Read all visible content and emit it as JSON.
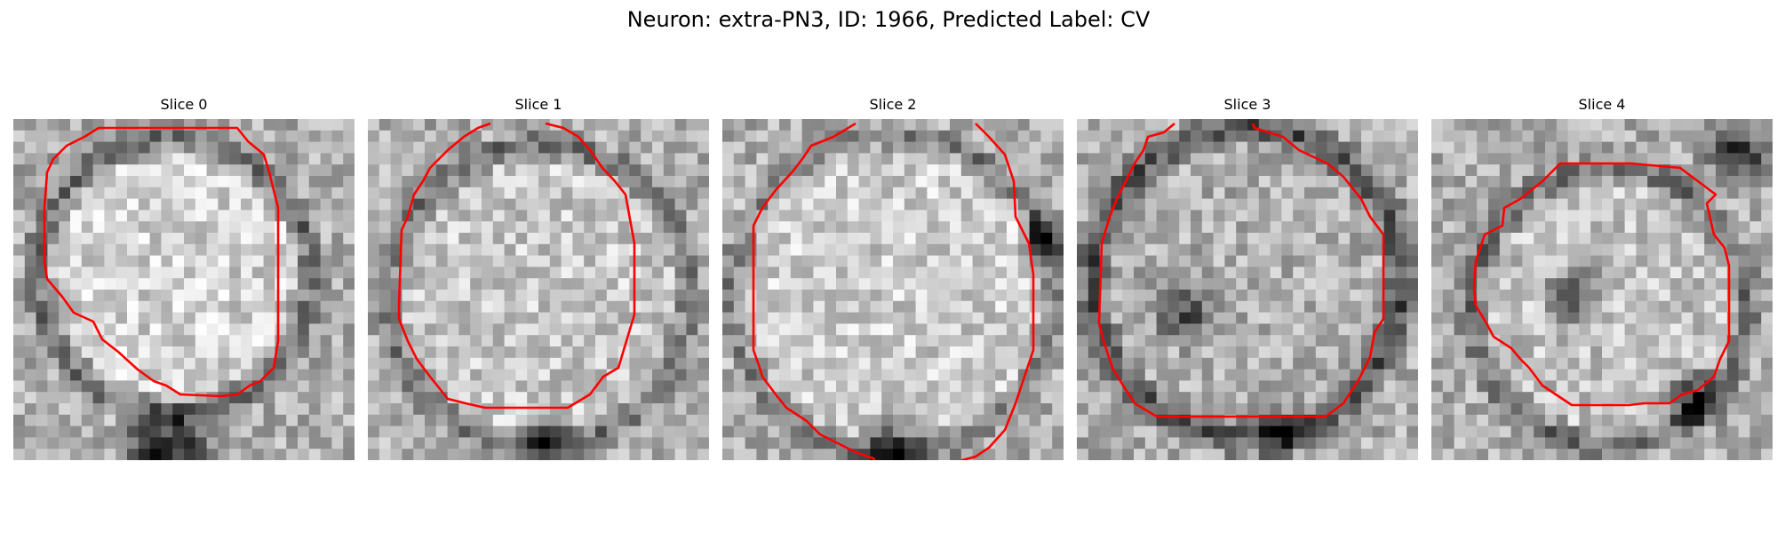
{
  "figure": {
    "title": "Neuron: extra-PN3, ID: 1966, Predicted Label: CV",
    "contour_color": "#ff0000"
  },
  "panels": [
    {
      "title": "Slice 0"
    },
    {
      "title": "Slice 1"
    },
    {
      "title": "Slice 2"
    },
    {
      "title": "Slice 3"
    },
    {
      "title": "Slice 4"
    }
  ]
}
